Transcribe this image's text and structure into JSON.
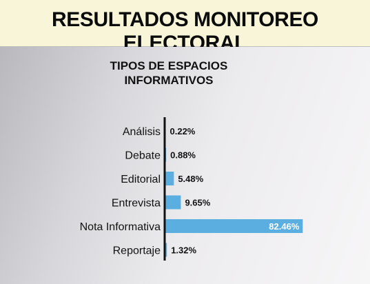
{
  "header": {
    "title": "RESULTADOS MONITOREO ELECTORAL"
  },
  "chart_data": {
    "type": "bar",
    "orientation": "horizontal",
    "title": "TIPOS DE ESPACIOS INFORMATIVOS",
    "categories": [
      "Análisis",
      "Debate",
      "Editorial",
      "Entrevista",
      "Nota Informativa",
      "Reportaje"
    ],
    "values": [
      0.22,
      0.88,
      5.48,
      9.65,
      82.46,
      1.32
    ],
    "labels": [
      "0.22%",
      "0.88%",
      "5.48%",
      "9.65%",
      "82.46%",
      "1.32%"
    ],
    "xlim": [
      0,
      100
    ],
    "grid": false,
    "legend": "none",
    "colors": {
      "bar": "#5aaee0",
      "axis": "#111111",
      "label_outside": "#111111",
      "label_inside": "#ffffff"
    }
  }
}
